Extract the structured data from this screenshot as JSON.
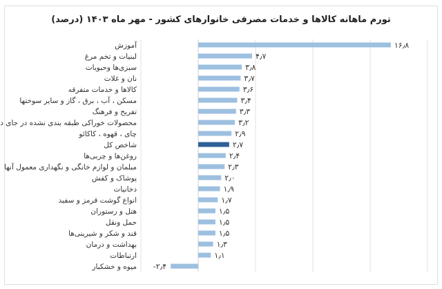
{
  "chart_data": {
    "type": "bar",
    "orientation": "horizontal",
    "title": "تورم ماهانه کالاها و خدمات مصرفی خانوارهای کشور - مهر ماه ۱۴۰۳ (درصد)",
    "xlim": [
      -5,
      20
    ],
    "gridlines": [
      -5,
      0,
      5,
      10,
      15,
      20
    ],
    "grid": true,
    "bar_color": "#9dbfe0",
    "highlight_color": "#2e5f98",
    "categories": [
      "آموزش",
      "لبنیات و تخم مرغ",
      "سبزی‌ها وحبوبات",
      "نان و غلات",
      "کالاها و خدمات متفرقه",
      "مسکن ، آب ، برق ، گاز و سایر سوختها",
      "تفریح و فرهنگ",
      "محصولات خوراکی طبقه بندی نشده در جای دیگر",
      "چای ، قهوه ، کاکائو",
      "شاخص کل",
      "روغن‌ها و چربی‌ها",
      "مبلمان و لوازم خانگی و نگهداری معمول آنها",
      "پوشاک و کفش",
      "دخانیات",
      "انواع گوشت قرمز و سفید",
      "هتل و رستوران",
      "حمل ونقل",
      "قند و شکر و شیرینی‌ها",
      "بهداشت و درمان",
      "ارتباطات",
      "میوه و خشکبار"
    ],
    "values": [
      16.8,
      4.7,
      3.8,
      3.7,
      3.6,
      3.4,
      3.3,
      3.2,
      2.9,
      2.7,
      2.4,
      2.3,
      2.0,
      1.9,
      1.7,
      1.5,
      1.5,
      1.5,
      1.3,
      1.1,
      -2.4
    ],
    "data_labels": [
      "۱۶٫۸",
      "۴٫۷",
      "۳٫۸",
      "۳٫۷",
      "۳٫۶",
      "۳٫۴",
      "۳٫۳",
      "۳٫۲",
      "۲٫۹",
      "۲٫۷",
      "۲٫۴",
      "۲٫۳",
      "۲٫۰",
      "۱٫۹",
      "۱٫۷",
      "۱٫۵",
      "۱٫۵",
      "۱٫۵",
      "۱٫۳",
      "۱٫۱",
      "-۲٫۴"
    ],
    "highlight": "شاخص کل"
  }
}
